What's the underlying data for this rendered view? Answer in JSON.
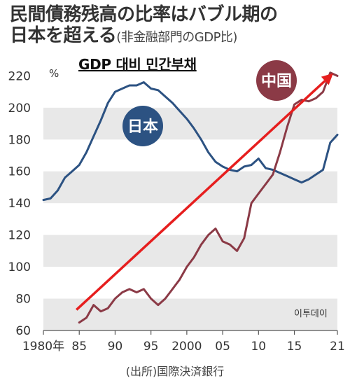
{
  "title": {
    "line1": "民間債務残高の比率はバブル期の",
    "line2_main": "日本を超える",
    "line2_sub": "(非金融部門のGDP比)"
  },
  "overlay_title": "GDP 대비 민간부채",
  "watermark": "이투데이",
  "source": "(出所)国際決済銀行",
  "colors": {
    "japan": "#2c5282",
    "china": "#8b3a46",
    "arrow": "#e61e1e",
    "band": "#e8e8e8"
  },
  "chart_data": {
    "type": "line",
    "title": "民間債務残高の比率はバブル期の日本を超える",
    "ylabel": "%",
    "ylim": [
      60,
      225
    ],
    "yticks": [
      60,
      80,
      100,
      120,
      140,
      160,
      180,
      200,
      220
    ],
    "xlim": [
      1980,
      2021
    ],
    "xticks": [
      {
        "value": 1980,
        "label": "1980年"
      },
      {
        "value": 1985,
        "label": "85"
      },
      {
        "value": 1990,
        "label": "90"
      },
      {
        "value": 1995,
        "label": "95"
      },
      {
        "value": 2000,
        "label": "2000"
      },
      {
        "value": 2005,
        "label": "05"
      },
      {
        "value": 2010,
        "label": "10"
      },
      {
        "value": 2015,
        "label": "15"
      },
      {
        "value": 2021,
        "label": "21"
      }
    ],
    "series": [
      {
        "name": "日本",
        "x": [
          1980,
          1981,
          1982,
          1983,
          1984,
          1985,
          1986,
          1987,
          1988,
          1989,
          1990,
          1991,
          1992,
          1993,
          1994,
          1995,
          1996,
          1997,
          1998,
          1999,
          2000,
          2001,
          2002,
          2003,
          2004,
          2005,
          2006,
          2007,
          2008,
          2009,
          2010,
          2011,
          2012,
          2013,
          2014,
          2015,
          2016,
          2017,
          2018,
          2019,
          2020,
          2021
        ],
        "values": [
          142,
          143,
          148,
          156,
          160,
          164,
          172,
          182,
          192,
          203,
          210,
          212,
          214,
          214,
          216,
          212,
          211,
          207,
          203,
          198,
          193,
          187,
          180,
          172,
          166,
          163,
          161,
          160,
          163,
          164,
          168,
          162,
          161,
          159,
          157,
          155,
          153,
          155,
          158,
          161,
          178,
          183
        ]
      },
      {
        "name": "中国",
        "x": [
          1985,
          1986,
          1987,
          1988,
          1989,
          1990,
          1991,
          1992,
          1993,
          1994,
          1995,
          1996,
          1997,
          1998,
          1999,
          2000,
          2001,
          2002,
          2003,
          2004,
          2005,
          2006,
          2007,
          2008,
          2009,
          2010,
          2011,
          2012,
          2013,
          2014,
          2015,
          2016,
          2017,
          2018,
          2019,
          2020,
          2021
        ],
        "values": [
          65,
          68,
          76,
          72,
          74,
          80,
          84,
          86,
          84,
          86,
          80,
          76,
          80,
          86,
          92,
          100,
          106,
          114,
          120,
          124,
          116,
          114,
          110,
          118,
          140,
          146,
          152,
          158,
          172,
          188,
          202,
          205,
          204,
          206,
          210,
          222,
          220
        ]
      }
    ],
    "annotations": [
      {
        "text": "日本",
        "series": "日本"
      },
      {
        "text": "中国",
        "series": "中国"
      }
    ],
    "arrow": {
      "from": [
        1985,
        73
      ],
      "to": [
        2021,
        219
      ]
    }
  }
}
